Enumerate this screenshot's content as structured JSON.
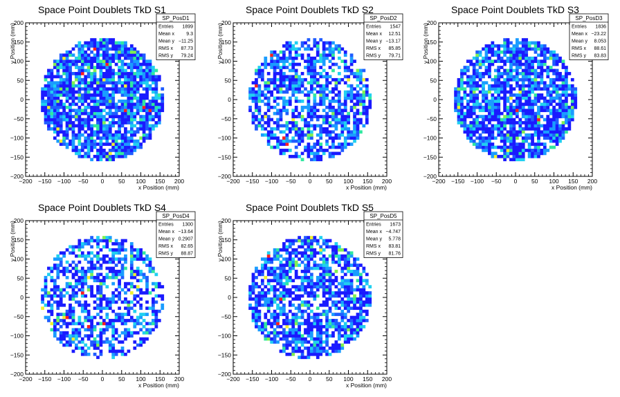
{
  "chart_data": [
    {
      "type": "heatmap",
      "title": "Space Point Doublets TkD S1",
      "xlabel": "x Position (mm)",
      "ylabel": "y Position (mm)",
      "xlim": [
        -200,
        200
      ],
      "ylim": [
        -200,
        200
      ],
      "xticks": [
        "−200",
        "−150",
        "−100",
        "−50",
        "0",
        "50",
        "100",
        "150",
        "200"
      ],
      "yticks": [
        "−200",
        "−150",
        "−100",
        "−50",
        "0",
        "50",
        "100",
        "150",
        "200"
      ],
      "stats": {
        "name": "SP_PosD1",
        "rows": [
          [
            "Entries",
            "1899"
          ],
          [
            "Mean x",
            "9.3"
          ],
          [
            "Mean y",
            "−11.25"
          ],
          [
            "RMS x",
            "87.73"
          ],
          [
            "RMS y",
            "79.24"
          ]
        ]
      },
      "fill_radius": 160,
      "bin_size": 8,
      "fill_fraction": 0.82,
      "seed": 11
    },
    {
      "type": "heatmap",
      "title": "Space Point Doublets TkD S2",
      "xlabel": "x Position (mm)",
      "ylabel": "y Position (mm)",
      "xlim": [
        -200,
        200
      ],
      "ylim": [
        -200,
        200
      ],
      "xticks": [
        "−200",
        "−150",
        "−100",
        "−50",
        "0",
        "50",
        "100",
        "150",
        "200"
      ],
      "yticks": [
        "−200",
        "−150",
        "−100",
        "−50",
        "0",
        "50",
        "100",
        "150",
        "200"
      ],
      "stats": {
        "name": "SP_PosD2",
        "rows": [
          [
            "Entries",
            "1547"
          ],
          [
            "Mean x",
            "12.51"
          ],
          [
            "Mean y",
            "−13.17"
          ],
          [
            "RMS x",
            "85.85"
          ],
          [
            "RMS y",
            "79.71"
          ]
        ]
      },
      "fill_radius": 160,
      "bin_size": 8,
      "fill_fraction": 0.62,
      "seed": 23
    },
    {
      "type": "heatmap",
      "title": "Space Point Doublets TkD S3",
      "xlabel": "x Position (mm)",
      "ylabel": "y Position (mm)",
      "xlim": [
        -200,
        200
      ],
      "ylim": [
        -200,
        200
      ],
      "xticks": [
        "−200",
        "−150",
        "−100",
        "−50",
        "0",
        "50",
        "100",
        "150",
        "200"
      ],
      "yticks": [
        "−200",
        "−150",
        "−100",
        "−50",
        "0",
        "50",
        "100",
        "150",
        "200"
      ],
      "stats": {
        "name": "SP_PosD3",
        "rows": [
          [
            "Entries",
            "1836"
          ],
          [
            "Mean x",
            "−23.22"
          ],
          [
            "Mean y",
            "8.053"
          ],
          [
            "RMS x",
            "88.61"
          ],
          [
            "RMS y",
            "83.83"
          ]
        ]
      },
      "fill_radius": 160,
      "bin_size": 8,
      "fill_fraction": 0.78,
      "seed": 37
    },
    {
      "type": "heatmap",
      "title": "Space Point Doublets TkD S4",
      "xlabel": "x Position (mm)",
      "ylabel": "y Position (mm)",
      "xlim": [
        -200,
        200
      ],
      "ylim": [
        -200,
        200
      ],
      "xticks": [
        "−200",
        "−150",
        "−100",
        "−50",
        "0",
        "50",
        "100",
        "150",
        "200"
      ],
      "yticks": [
        "−200",
        "−150",
        "−100",
        "−50",
        "0",
        "50",
        "100",
        "150",
        "200"
      ],
      "stats": {
        "name": "SP_PosD4",
        "rows": [
          [
            "Entries",
            "1300"
          ],
          [
            "Mean x",
            "−13.64"
          ],
          [
            "Mean y",
            "0.2907"
          ],
          [
            "RMS x",
            "82.65"
          ],
          [
            "RMS y",
            "88.87"
          ]
        ]
      },
      "fill_radius": 160,
      "bin_size": 8,
      "fill_fraction": 0.55,
      "seed": 41
    },
    {
      "type": "heatmap",
      "title": "Space Point Doublets TkD S5",
      "xlabel": "x Position (mm)",
      "ylabel": "y Position (mm)",
      "xlim": [
        -200,
        200
      ],
      "ylim": [
        -200,
        200
      ],
      "xticks": [
        "−200",
        "−150",
        "−100",
        "−50",
        "0",
        "50",
        "100",
        "150",
        "200"
      ],
      "yticks": [
        "−200",
        "−150",
        "−100",
        "−50",
        "0",
        "50",
        "100",
        "150",
        "200"
      ],
      "stats": {
        "name": "SP_PosD5",
        "rows": [
          [
            "Entries",
            "1673"
          ],
          [
            "Mean x",
            "−4.747"
          ],
          [
            "Mean y",
            "5.778"
          ],
          [
            "RMS x",
            "83.81"
          ],
          [
            "RMS y",
            "81.76"
          ]
        ]
      },
      "fill_radius": 160,
      "bin_size": 8,
      "fill_fraction": 0.68,
      "seed": 53
    }
  ],
  "colors": {
    "palette": [
      "#1a1aff",
      "#1f5cff",
      "#1a9cff",
      "#20d0f0",
      "#30e8a0",
      "#80f050",
      "#f0f030",
      "#ff2020"
    ],
    "axis": "#000000",
    "background": "#ffffff"
  }
}
